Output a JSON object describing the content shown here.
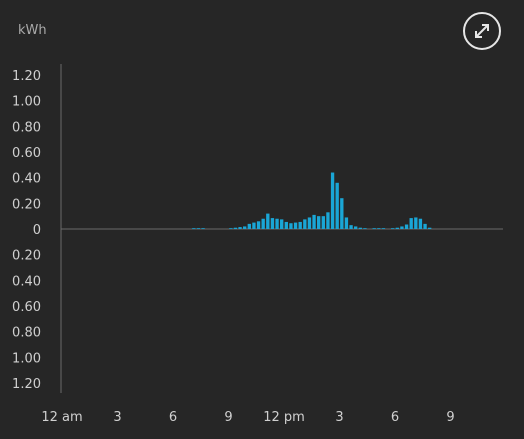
{
  "unit_label": "kWh",
  "expand_icon": "expand-arrows-icon",
  "colors": {
    "bar": "#1aa6d6",
    "axis": "#6a6a6a",
    "background": "#262626"
  },
  "chart_data": {
    "type": "bar",
    "ylabel": "kWh",
    "ylim": [
      -1.2,
      1.2
    ],
    "yticks": [
      "1.20",
      "1.00",
      "0.80",
      "0.60",
      "0.40",
      "0.20",
      "0",
      "0.20",
      "0.40",
      "0.60",
      "0.80",
      "1.00",
      "1.20"
    ],
    "xticks": [
      "12 am",
      "3",
      "6",
      "9",
      "12 pm",
      "3",
      "6",
      "9"
    ],
    "interval_hours": 0.25,
    "values": [
      0,
      0,
      0,
      0,
      0,
      0,
      0,
      0,
      0,
      0,
      0,
      0,
      0,
      0,
      0,
      0,
      0,
      0,
      0,
      0,
      0,
      0,
      0,
      0,
      0,
      0,
      0,
      0,
      0.005,
      0.005,
      0.005,
      0,
      0,
      0,
      0,
      0,
      0.005,
      0.01,
      0.015,
      0.02,
      0.04,
      0.05,
      0.06,
      0.08,
      0.12,
      0.085,
      0.08,
      0.075,
      0.055,
      0.045,
      0.05,
      0.055,
      0.075,
      0.09,
      0.11,
      0.1,
      0.1,
      0.13,
      0.44,
      0.36,
      0.24,
      0.09,
      0.03,
      0.02,
      0.01,
      0.005,
      0,
      0.005,
      0.005,
      0.005,
      0,
      0.005,
      0.01,
      0.02,
      0.035,
      0.085,
      0.09,
      0.08,
      0.04,
      0.01,
      0,
      0,
      0,
      0,
      0,
      0,
      0,
      0,
      0,
      0,
      0,
      0,
      0,
      0,
      0,
      0
    ]
  }
}
